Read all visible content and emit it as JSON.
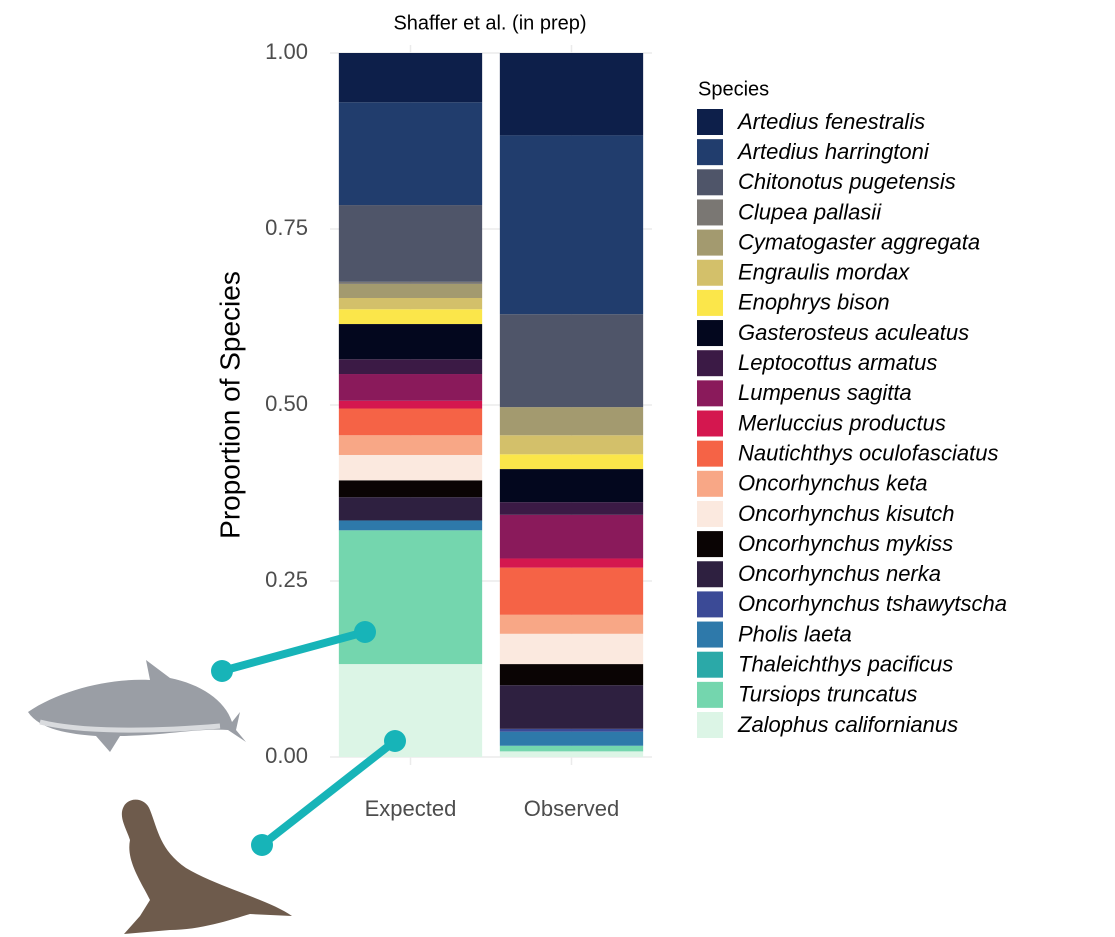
{
  "chart_data": {
    "type": "stacked_bar",
    "title": "Shaffer et al. (in prep)",
    "y_label": "Proportion of Species",
    "legend_title": "Species",
    "categories": [
      "Expected",
      "Observed"
    ],
    "ylim": [
      0,
      1
    ],
    "yticks": [
      {
        "value": 0,
        "label": "0.00"
      },
      {
        "value": 0.25,
        "label": "0.25"
      },
      {
        "value": 0.5,
        "label": "0.50"
      },
      {
        "value": 0.75,
        "label": "0.75"
      },
      {
        "value": 1,
        "label": "1.00"
      }
    ],
    "grid": true,
    "legend": "right",
    "series": [
      {
        "name": "Artedius fenestralis",
        "color": "#0d1f4a",
        "values": [
          0.07,
          0.117
        ]
      },
      {
        "name": "Artedius harringtoni",
        "color": "#213d6d",
        "values": [
          0.146,
          0.254
        ]
      },
      {
        "name": "Chitonotus pugetensis",
        "color": "#4f5569",
        "values": [
          0.109,
          0.132
        ]
      },
      {
        "name": "Clupea pallasii",
        "color": "#7a7773",
        "values": [
          0.003,
          0
        ]
      },
      {
        "name": "Cymatogaster aggregata",
        "color": "#a39a6f",
        "values": [
          0.02,
          0.04
        ]
      },
      {
        "name": "Engraulis mordax",
        "color": "#d3c06a",
        "values": [
          0.016,
          0.027
        ]
      },
      {
        "name": "Enophrys bison",
        "color": "#fbe64a",
        "values": [
          0.021,
          0.021
        ]
      },
      {
        "name": "Gasterosteus aculeatus",
        "color": "#03071e",
        "values": [
          0.05,
          0.047
        ]
      },
      {
        "name": "Leptocottus armatus",
        "color": "#3b1a45",
        "values": [
          0.021,
          0.018
        ]
      },
      {
        "name": "Lumpenus sagitta",
        "color": "#8a1a5b",
        "values": [
          0.038,
          0.062
        ]
      },
      {
        "name": "Merluccius productus",
        "color": "#d4174f",
        "values": [
          0.011,
          0.013
        ]
      },
      {
        "name": "Nautichthys oculofasciatus",
        "color": "#f56346",
        "values": [
          0.038,
          0.067
        ]
      },
      {
        "name": "Oncorhynchus keta",
        "color": "#f8a786",
        "values": [
          0.028,
          0.027
        ]
      },
      {
        "name": "Oncorhynchus kisutch",
        "color": "#fbe9df",
        "values": [
          0.036,
          0.043
        ]
      },
      {
        "name": "Oncorhynchus mykiss",
        "color": "#0a0404",
        "values": [
          0.024,
          0.03
        ]
      },
      {
        "name": "Oncorhynchus nerka",
        "color": "#2e2040",
        "values": [
          0.033,
          0.062
        ]
      },
      {
        "name": "Oncorhynchus tshawytscha",
        "color": "#3b4a96",
        "values": [
          0,
          0.004
        ]
      },
      {
        "name": "Pholis laeta",
        "color": "#2e79aa",
        "values": [
          0.014,
          0.02
        ]
      },
      {
        "name": "Thaleichthys pacificus",
        "color": "#2ba9a8",
        "values": [
          0,
          0
        ]
      },
      {
        "name": "Tursiops truncatus",
        "color": "#74d6ae",
        "values": [
          0.19,
          0.008
        ]
      },
      {
        "name": "Zalophus californianus",
        "color": "#dcf5e6",
        "values": [
          0.132,
          0.008
        ]
      }
    ]
  }
}
